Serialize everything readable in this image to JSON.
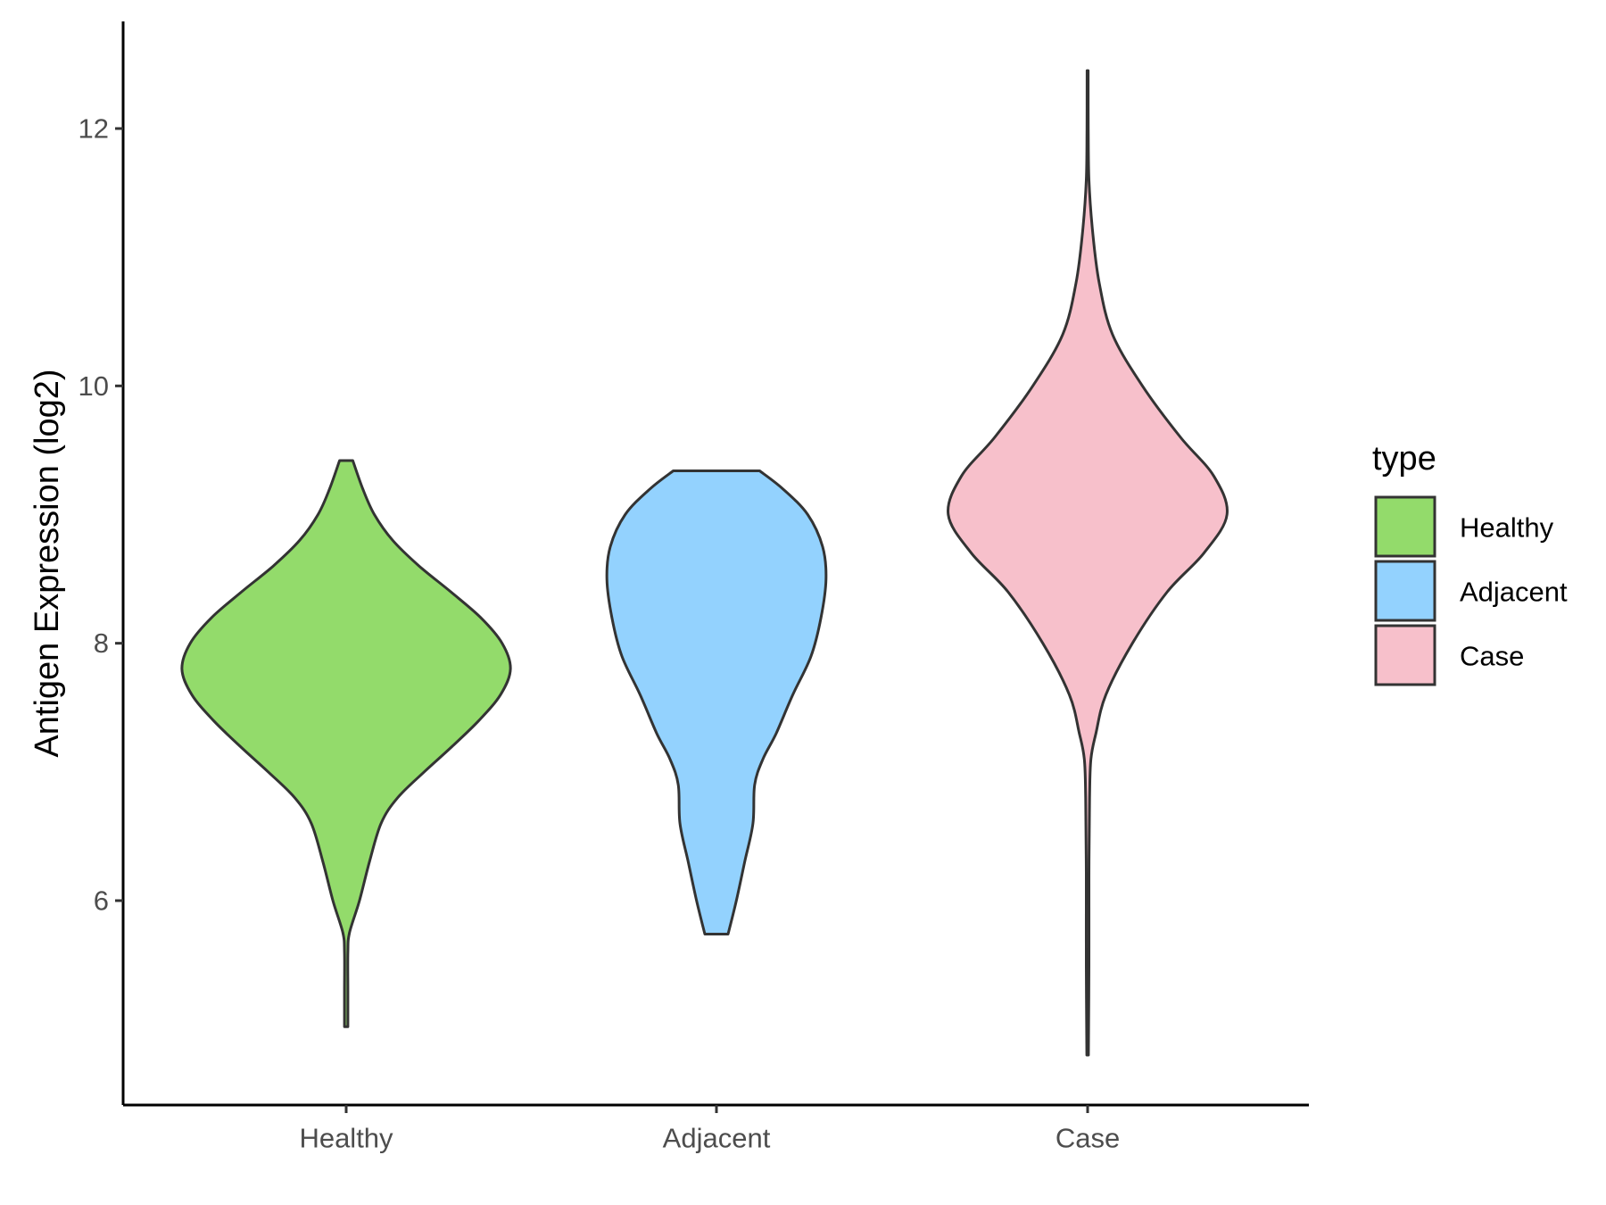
{
  "chart_data": {
    "type": "violin",
    "title": "",
    "xlabel": "",
    "ylabel": "Antigen Expression (log2)",
    "ylim": [
      4.6,
      12.85
    ],
    "yticks": [
      6,
      8,
      10,
      12
    ],
    "categories": [
      "Healthy",
      "Adjacent",
      "Case"
    ],
    "colors": {
      "Healthy": "#93db6b",
      "Adjacent": "#93d2fe",
      "Case": "#f7c0cb"
    },
    "outline_color": "#333333",
    "legend": {
      "title": "type",
      "position": "right",
      "entries": [
        "Healthy",
        "Adjacent",
        "Case"
      ]
    },
    "series": [
      {
        "category": "Healthy",
        "min": 5.02,
        "max": 9.42,
        "profile": [
          [
            5.02,
            0.01
          ],
          [
            5.3,
            0.01
          ],
          [
            5.6,
            0.01
          ],
          [
            5.75,
            0.02
          ],
          [
            6.0,
            0.08
          ],
          [
            6.3,
            0.14
          ],
          [
            6.6,
            0.21
          ],
          [
            6.8,
            0.31
          ],
          [
            7.0,
            0.47
          ],
          [
            7.2,
            0.64
          ],
          [
            7.4,
            0.8
          ],
          [
            7.6,
            0.93
          ],
          [
            7.8,
            0.99
          ],
          [
            8.0,
            0.94
          ],
          [
            8.2,
            0.81
          ],
          [
            8.4,
            0.63
          ],
          [
            8.6,
            0.44
          ],
          [
            8.8,
            0.28
          ],
          [
            9.0,
            0.17
          ],
          [
            9.2,
            0.1
          ],
          [
            9.42,
            0.04
          ]
        ]
      },
      {
        "category": "Adjacent",
        "min": 5.74,
        "max": 9.34,
        "profile": [
          [
            5.74,
            0.07
          ],
          [
            6.0,
            0.12
          ],
          [
            6.3,
            0.17
          ],
          [
            6.6,
            0.22
          ],
          [
            6.9,
            0.23
          ],
          [
            7.1,
            0.28
          ],
          [
            7.3,
            0.36
          ],
          [
            7.6,
            0.46
          ],
          [
            7.9,
            0.57
          ],
          [
            8.2,
            0.63
          ],
          [
            8.5,
            0.66
          ],
          [
            8.75,
            0.64
          ],
          [
            9.0,
            0.55
          ],
          [
            9.2,
            0.4
          ],
          [
            9.34,
            0.26
          ]
        ]
      },
      {
        "category": "Case",
        "min": 4.8,
        "max": 12.45,
        "profile": [
          [
            4.8,
            0.005
          ],
          [
            5.5,
            0.008
          ],
          [
            6.2,
            0.008
          ],
          [
            6.8,
            0.012
          ],
          [
            7.1,
            0.02
          ],
          [
            7.3,
            0.05
          ],
          [
            7.6,
            0.11
          ],
          [
            8.0,
            0.27
          ],
          [
            8.4,
            0.48
          ],
          [
            8.7,
            0.7
          ],
          [
            9.0,
            0.84
          ],
          [
            9.3,
            0.76
          ],
          [
            9.6,
            0.56
          ],
          [
            10.0,
            0.33
          ],
          [
            10.4,
            0.15
          ],
          [
            10.8,
            0.07
          ],
          [
            11.2,
            0.03
          ],
          [
            11.6,
            0.008
          ],
          [
            12.0,
            0.004
          ],
          [
            12.45,
            0.003
          ]
        ]
      }
    ]
  }
}
